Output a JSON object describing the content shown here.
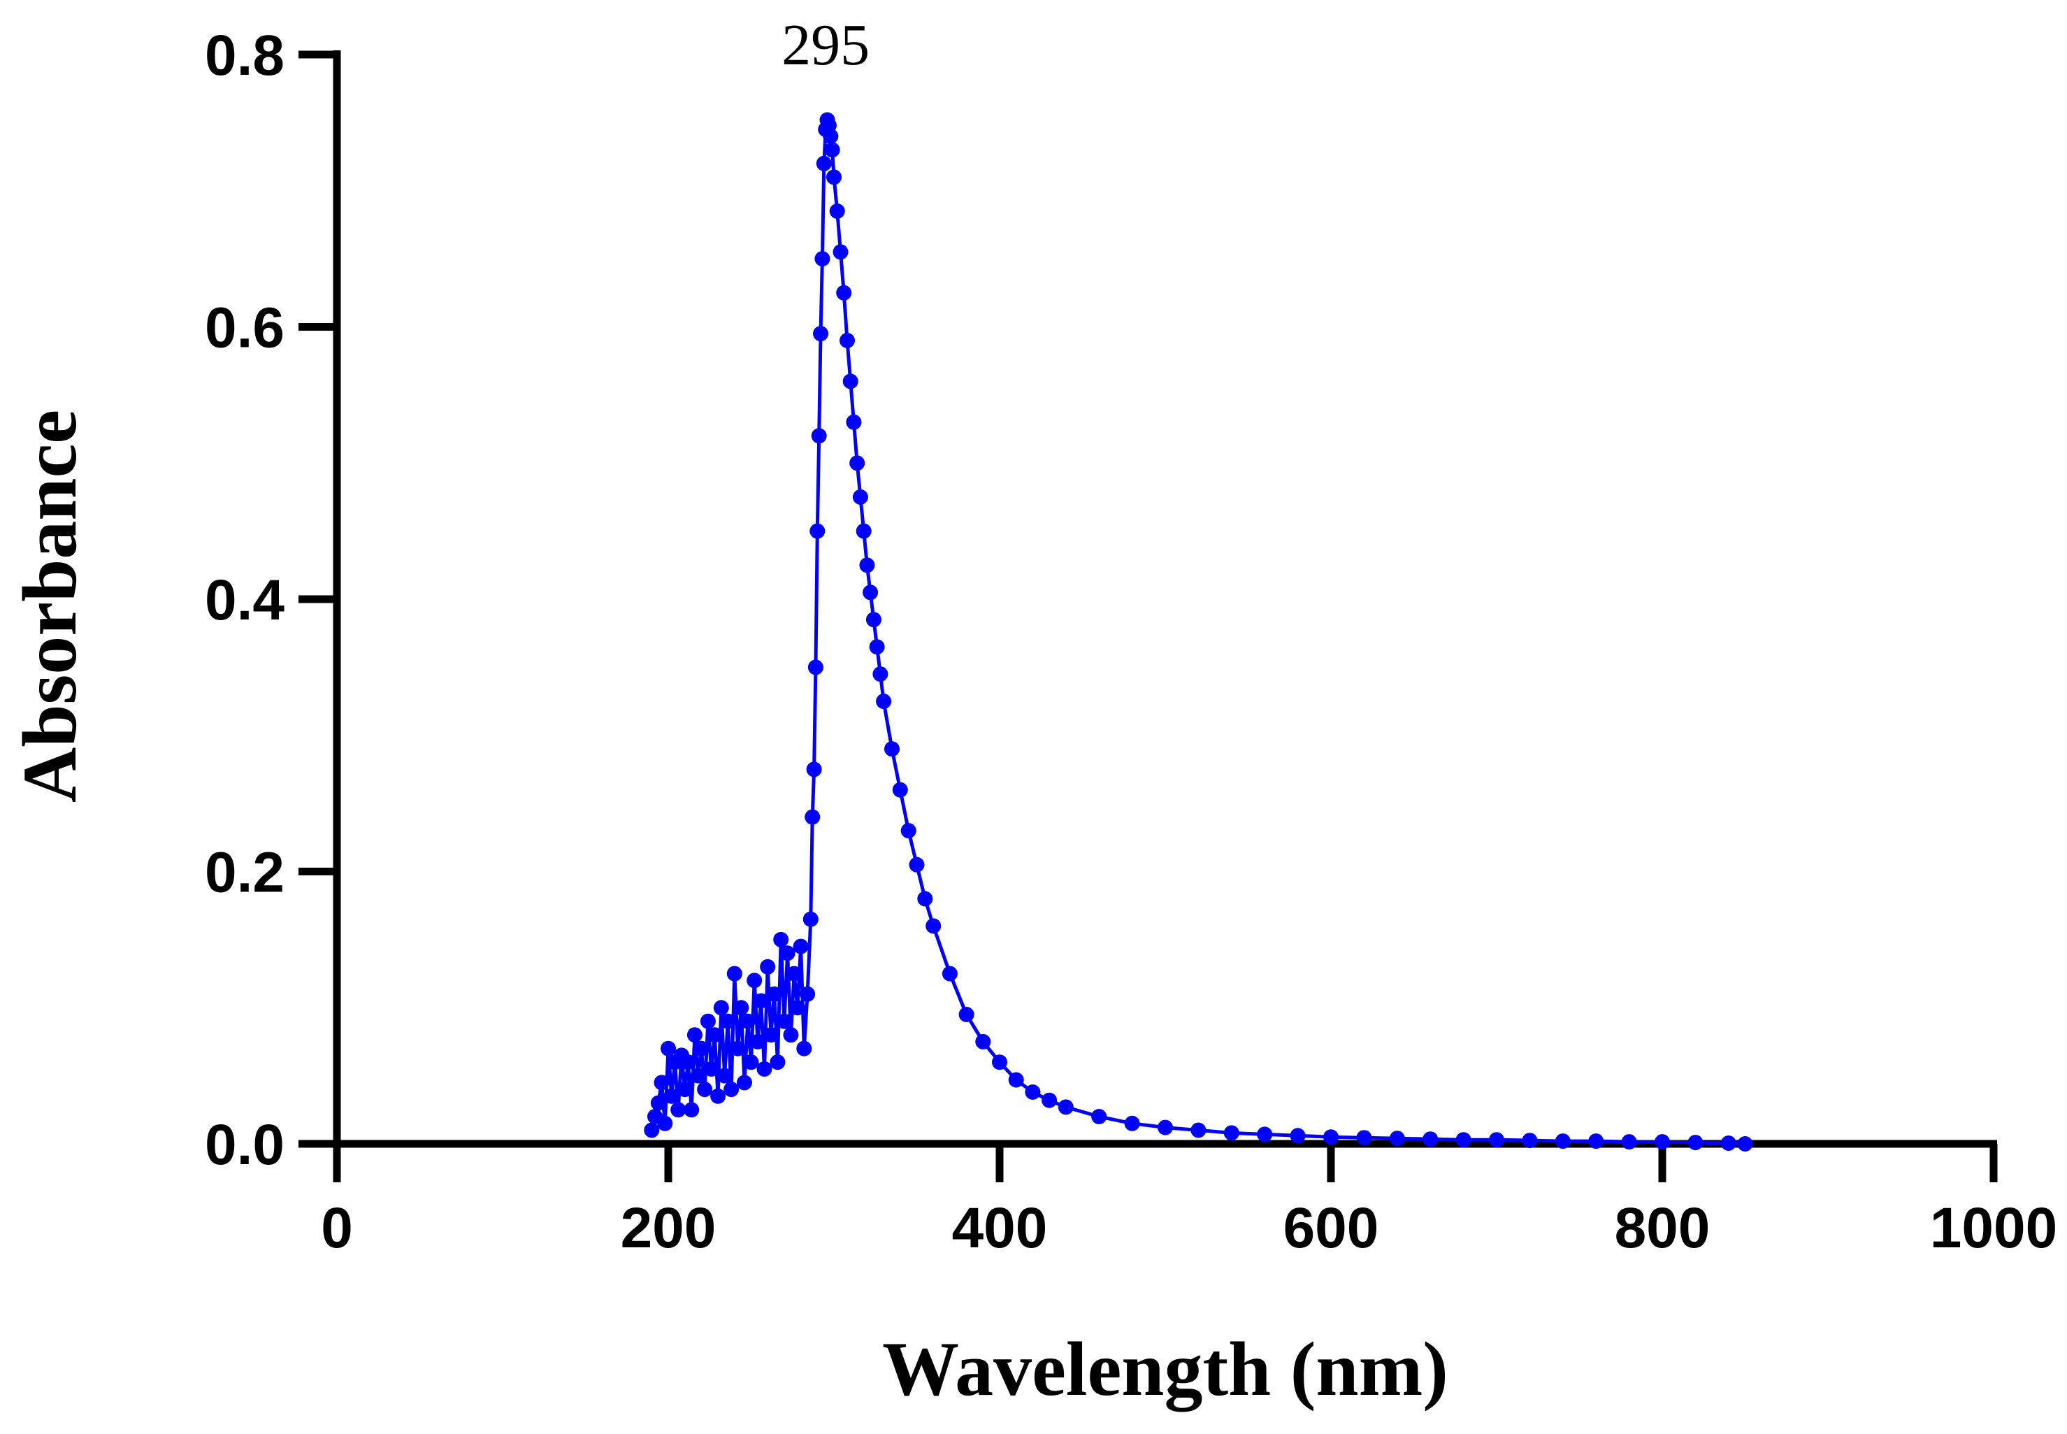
{
  "chart_data": {
    "type": "line",
    "title": "",
    "xlabel": "Wavelength (nm)",
    "ylabel": "Absorbance",
    "xlim": [
      0,
      1000
    ],
    "ylim": [
      0,
      0.8
    ],
    "xticks": [
      0,
      200,
      400,
      600,
      800,
      1000
    ],
    "yticks": [
      0,
      0.2,
      0.4,
      0.6,
      0.8
    ],
    "xtick_labels": [
      "0",
      "200",
      "400",
      "600",
      "800",
      "1000"
    ],
    "ytick_labels": [
      "0.0",
      "0.2",
      "0.4",
      "0.6",
      "0.8"
    ],
    "grid": false,
    "legend": "none",
    "series_color": "#0000ff",
    "annotations": [
      {
        "text": "295",
        "x": 295,
        "y": 0.8
      }
    ],
    "series": [
      {
        "name": "Absorbance spectrum",
        "markers": true,
        "x": [
          190,
          192,
          194,
          196,
          198,
          200,
          202,
          204,
          206,
          208,
          210,
          212,
          214,
          216,
          218,
          220,
          222,
          224,
          226,
          228,
          230,
          232,
          234,
          236,
          238,
          240,
          242,
          244,
          246,
          248,
          250,
          252,
          254,
          256,
          258,
          260,
          262,
          264,
          266,
          268,
          270,
          272,
          274,
          276,
          278,
          280,
          282,
          284,
          286,
          287,
          288,
          289,
          290,
          291,
          292,
          293,
          294,
          295,
          296,
          297,
          298,
          299,
          300,
          302,
          304,
          306,
          308,
          310,
          312,
          314,
          316,
          318,
          320,
          322,
          324,
          326,
          328,
          330,
          335,
          340,
          345,
          350,
          355,
          360,
          370,
          380,
          390,
          400,
          410,
          420,
          430,
          440,
          460,
          480,
          500,
          520,
          540,
          560,
          580,
          600,
          620,
          640,
          660,
          680,
          700,
          720,
          740,
          760,
          780,
          800,
          820,
          840,
          850
        ],
        "y": [
          0.01,
          0.02,
          0.03,
          0.045,
          0.015,
          0.07,
          0.035,
          0.06,
          0.025,
          0.065,
          0.04,
          0.06,
          0.025,
          0.08,
          0.05,
          0.07,
          0.04,
          0.09,
          0.055,
          0.08,
          0.035,
          0.1,
          0.05,
          0.09,
          0.04,
          0.125,
          0.07,
          0.1,
          0.045,
          0.09,
          0.06,
          0.12,
          0.075,
          0.105,
          0.055,
          0.13,
          0.08,
          0.11,
          0.06,
          0.15,
          0.09,
          0.14,
          0.08,
          0.125,
          0.1,
          0.145,
          0.07,
          0.11,
          0.165,
          0.24,
          0.275,
          0.35,
          0.45,
          0.52,
          0.595,
          0.65,
          0.72,
          0.745,
          0.752,
          0.748,
          0.74,
          0.73,
          0.71,
          0.685,
          0.655,
          0.625,
          0.59,
          0.56,
          0.53,
          0.5,
          0.475,
          0.45,
          0.425,
          0.405,
          0.385,
          0.365,
          0.345,
          0.325,
          0.29,
          0.26,
          0.23,
          0.205,
          0.18,
          0.16,
          0.125,
          0.095,
          0.075,
          0.06,
          0.047,
          0.038,
          0.032,
          0.027,
          0.02,
          0.015,
          0.012,
          0.01,
          0.008,
          0.007,
          0.006,
          0.005,
          0.0045,
          0.004,
          0.0035,
          0.003,
          0.003,
          0.0025,
          0.002,
          0.002,
          0.0015,
          0.0015,
          0.001,
          0.0005,
          0.0
        ]
      }
    ]
  }
}
